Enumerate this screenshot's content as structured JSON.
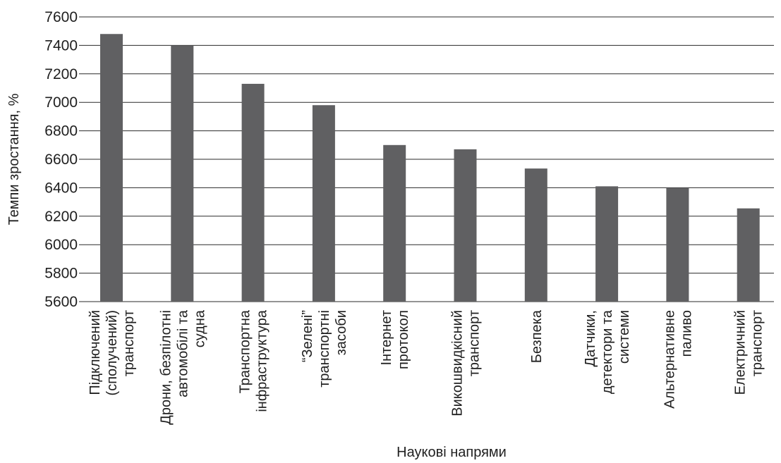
{
  "chart_data": {
    "type": "bar",
    "title": "",
    "xlabel": "Наукові напрями",
    "ylabel": "Темпи зростання, %",
    "ylim": [
      5600,
      7600
    ],
    "ytick_step": 200,
    "yticks": [
      "5600",
      "5800",
      "6000",
      "6200",
      "6400",
      "6600",
      "6800",
      "7000",
      "7200",
      "7400",
      "7600"
    ],
    "grid": true,
    "legend": "none",
    "bar_color": "#606062",
    "categories": [
      [
        "Підключений",
        "(сполучений)",
        "транспорт"
      ],
      [
        "Дрони, безпілотні",
        "автомобілі та",
        "судна"
      ],
      [
        "Транспортна",
        "інфраструктура"
      ],
      [
        "“Зелені”",
        "транспортні",
        "засоби"
      ],
      [
        "Інтернет",
        "протокол"
      ],
      [
        "Викошвидкісний",
        "транспорт"
      ],
      [
        "Безпека"
      ],
      [
        "Датчики,",
        "детектори та",
        "системи"
      ],
      [
        "Альтернативне",
        "паливо"
      ],
      [
        "Електричний",
        "транспорт"
      ]
    ],
    "values": [
      7480,
      7400,
      7130,
      6980,
      6700,
      6670,
      6535,
      6410,
      6400,
      6255
    ]
  }
}
